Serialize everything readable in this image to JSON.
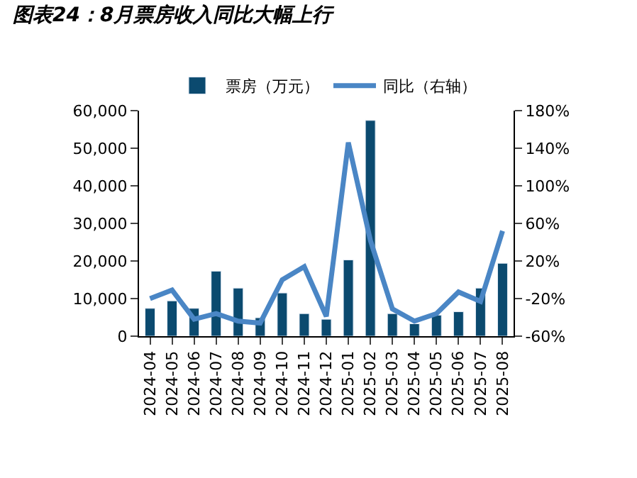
{
  "chart_data": {
    "type": "bar",
    "title": "图表24：8月票房收入同比大幅上行",
    "categories": [
      "2024-04",
      "2024-05",
      "2024-06",
      "2024-07",
      "2024-08",
      "2024-09",
      "2024-10",
      "2024-11",
      "2024-12",
      "2025-01",
      "2025-02",
      "2025-03",
      "2025-04",
      "2025-05",
      "2025-06",
      "2025-07",
      "2025-08"
    ],
    "series": [
      {
        "name": "票房（万元）",
        "color": "#0b4a6f",
        "values": [
          7400,
          9400,
          7400,
          17300,
          12800,
          4900,
          11500,
          6000,
          4500,
          20300,
          57400,
          6000,
          3300,
          5600,
          6500,
          12800,
          19400
        ]
      },
      {
        "name": "同比（右轴）",
        "type": "line",
        "axis": "y2",
        "color": "#4a86c5",
        "values": [
          -20,
          -11,
          -42,
          -36,
          -44,
          -46,
          0,
          14,
          -39,
          146,
          42,
          -31,
          -44,
          -36,
          -13,
          -23,
          52
        ]
      }
    ],
    "ylim": [
      0,
      60000
    ],
    "yticks": [
      {
        "value": 0,
        "label": "0"
      },
      {
        "value": 10000,
        "label": "10,000"
      },
      {
        "value": 20000,
        "label": "20,000"
      },
      {
        "value": 30000,
        "label": "30,000"
      },
      {
        "value": 40000,
        "label": "40,000"
      },
      {
        "value": 50000,
        "label": "50,000"
      },
      {
        "value": 60000,
        "label": "60,000"
      }
    ],
    "y2lim": [
      -60,
      180
    ],
    "y2ticks": [
      {
        "value": -60,
        "label": "-60%"
      },
      {
        "value": -20,
        "label": "-20%"
      },
      {
        "value": 20,
        "label": "20%"
      },
      {
        "value": 60,
        "label": "60%"
      },
      {
        "value": 100,
        "label": "100%"
      },
      {
        "value": 140,
        "label": "140%"
      },
      {
        "value": 180,
        "label": "180%"
      }
    ],
    "legend": "top"
  }
}
